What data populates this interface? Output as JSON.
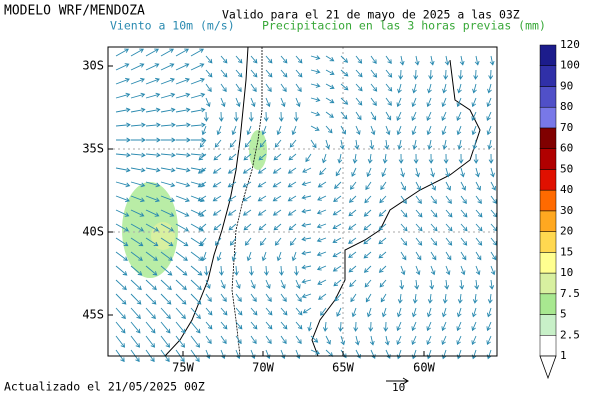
{
  "header": {
    "title": "MODELO WRF/MENDOZA",
    "valid": "Valido para el 21 de mayo de 2025 a las 03Z",
    "wind_label": "Viento a 10m (m/s)",
    "precip_label": "Precipitacion en las 3 horas previas (mm)"
  },
  "map": {
    "lat_labels": [
      "30S",
      "35S",
      "40S",
      "45S"
    ],
    "lon_labels": [
      "75W",
      "70W",
      "65W",
      "60W"
    ]
  },
  "colorbar": {
    "labels": [
      "1",
      "2.5",
      "5",
      "7.5",
      "10",
      "15",
      "20",
      "30",
      "40",
      "50",
      "60",
      "70",
      "80",
      "90",
      "100",
      "120"
    ],
    "colors": [
      "#ffffff",
      "#c8f0c8",
      "#a8e890",
      "#d8f0a0",
      "#ffff90",
      "#ffd850",
      "#ffa820",
      "#ff6a00",
      "#e01000",
      "#b00000",
      "#800000",
      "#7878e8",
      "#5050c8",
      "#3030a8",
      "#1c1c8c"
    ]
  },
  "footer": {
    "updated": "Actualizado el 21/05/2025 00Z",
    "reference_arrow": "10"
  }
}
